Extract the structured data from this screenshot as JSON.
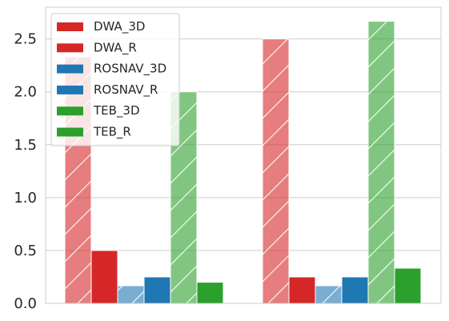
{
  "chart_data": {
    "type": "bar",
    "categories": [
      "",
      ""
    ],
    "series": [
      {
        "name": "DWA_3D",
        "values": [
          2.33,
          2.5
        ],
        "color": "#d62728",
        "hatched": true
      },
      {
        "name": "DWA_R",
        "values": [
          0.5,
          0.25
        ],
        "color": "#d62728",
        "hatched": false
      },
      {
        "name": "ROSNAV_3D",
        "values": [
          0.167,
          0.167
        ],
        "color": "#1f77b4",
        "hatched": true
      },
      {
        "name": "ROSNAV_R",
        "values": [
          0.25,
          0.25
        ],
        "color": "#1f77b4",
        "hatched": false
      },
      {
        "name": "TEB_3D",
        "values": [
          2.0,
          2.667
        ],
        "color": "#2ca02c",
        "hatched": true
      },
      {
        "name": "TEB_R",
        "values": [
          0.2,
          0.333
        ],
        "color": "#2ca02c",
        "hatched": false
      }
    ],
    "ylim": [
      0,
      2.8
    ],
    "yticks": [
      "0.0",
      "0.5",
      "1.0",
      "1.5",
      "2.0",
      "2.5"
    ],
    "title": "",
    "xlabel": "",
    "ylabel": "",
    "grid": "horizontal",
    "legend_position": "top-left"
  }
}
